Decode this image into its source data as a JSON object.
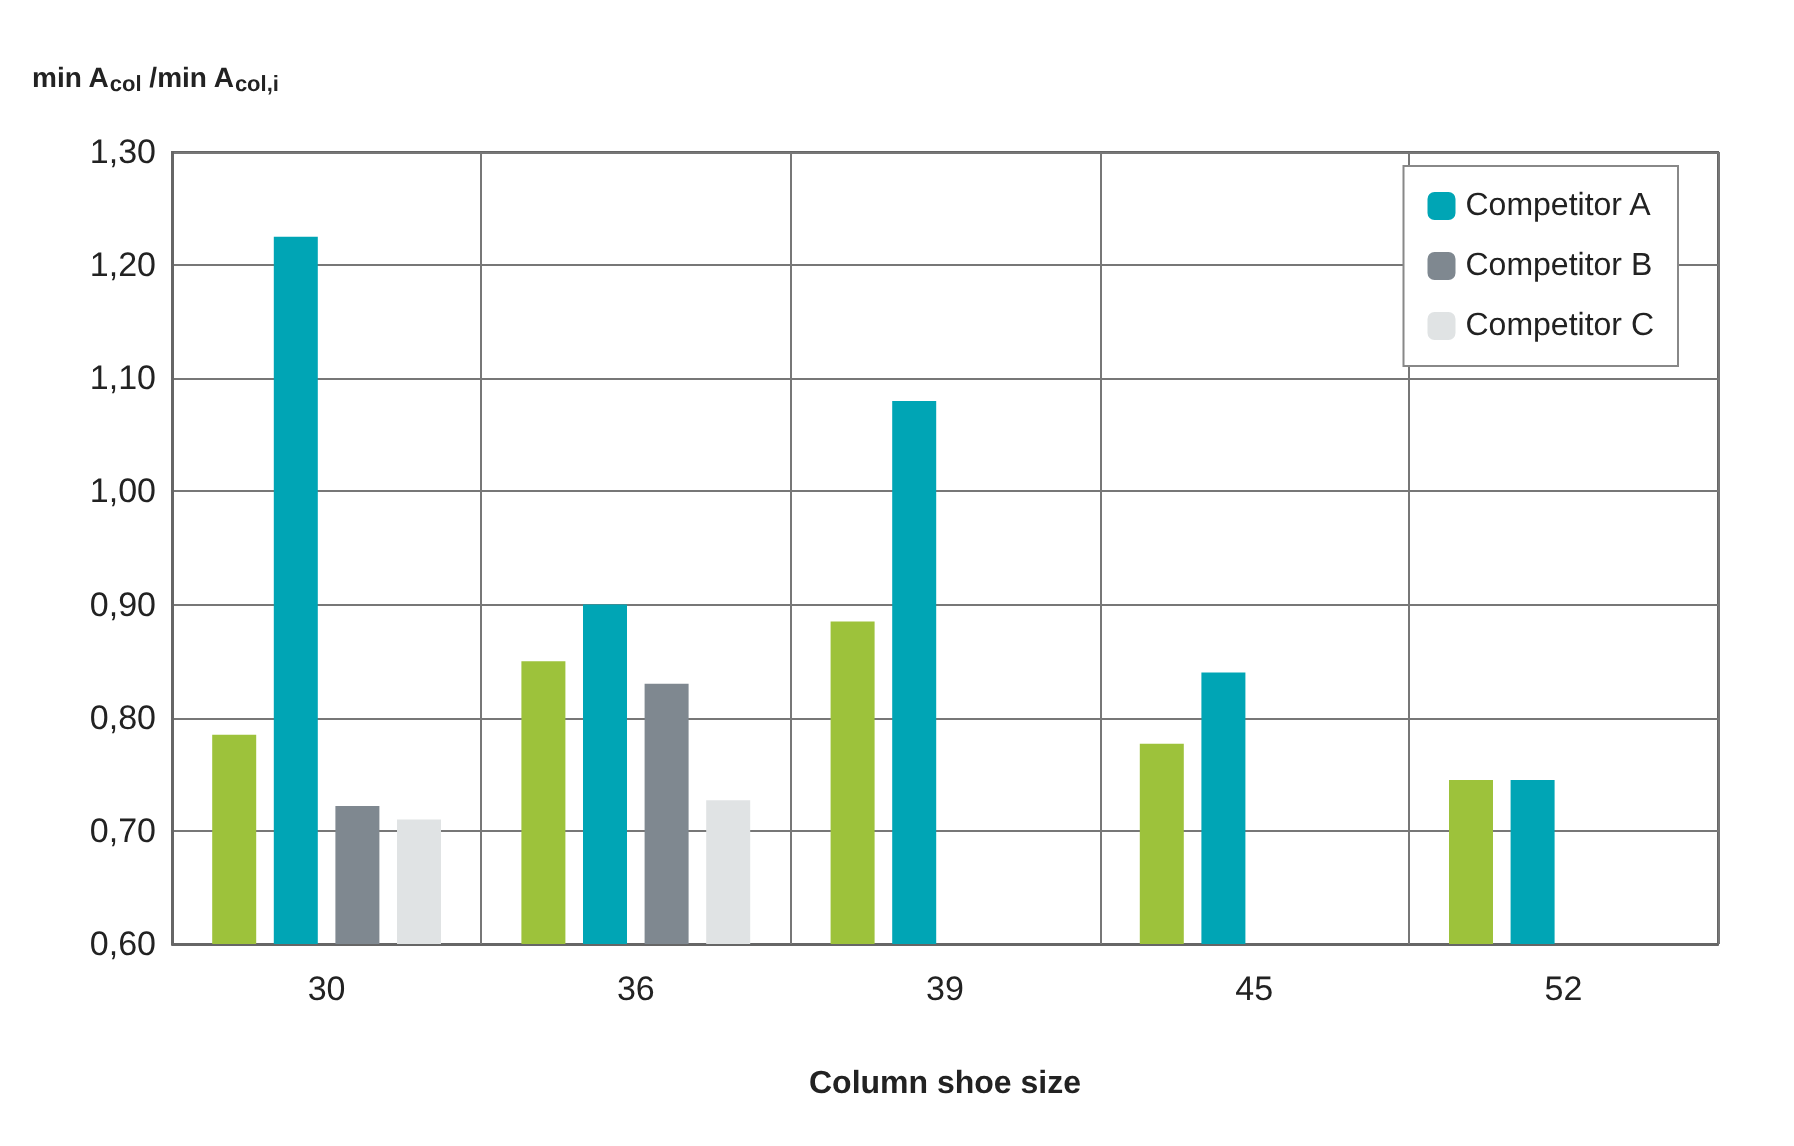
{
  "chart_data": {
    "type": "bar",
    "ylabel": "min A$_{col}$ /min A$_{col,i}$",
    "xlabel": "Column shoe size",
    "categories": [
      "30",
      "36",
      "39",
      "45",
      "52"
    ],
    "series": [
      {
        "color": "#9dc23b",
        "values": [
          0.785,
          0.85,
          0.885,
          0.777,
          0.745
        ]
      },
      {
        "name": "Competitor A",
        "color": "#00a5b5",
        "values": [
          1.225,
          0.9,
          1.08,
          0.84,
          0.745
        ]
      },
      {
        "name": "Competitor B",
        "color": "#7f8890",
        "values": [
          0.722,
          0.83,
          null,
          null,
          null
        ]
      },
      {
        "name": "Competitor C",
        "color": "#e0e3e4",
        "values": [
          0.71,
          0.727,
          null,
          null,
          null
        ]
      }
    ],
    "ylim": [
      0.6,
      1.3
    ],
    "yticks": [
      {
        "value": 0.6,
        "label": "0,60"
      },
      {
        "value": 0.7,
        "label": "0,70"
      },
      {
        "value": 0.8,
        "label": "0,80"
      },
      {
        "value": 0.9,
        "label": "0,90"
      },
      {
        "value": 1.0,
        "label": "1,00"
      },
      {
        "value": 1.1,
        "label": "1,10"
      },
      {
        "value": 1.2,
        "label": "1,20"
      },
      {
        "value": 1.3,
        "label": "1,30"
      }
    ],
    "grid": true,
    "legend": "top right"
  }
}
